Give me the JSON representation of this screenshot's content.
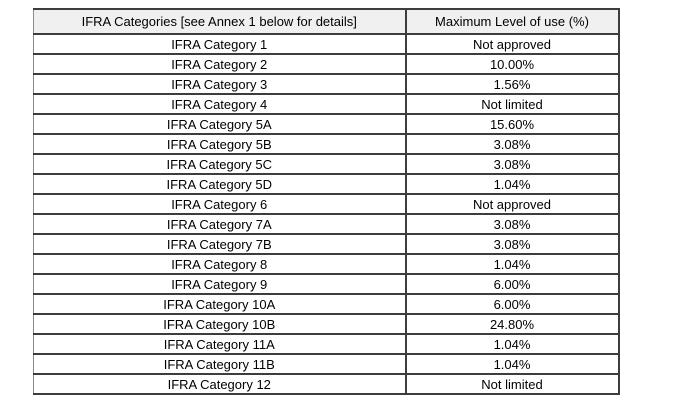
{
  "table": {
    "headers": [
      "IFRA Categories [see Annex 1 below for details]",
      "Maximum Level of use (%)"
    ],
    "rows": [
      {
        "category": "IFRA Category 1",
        "max_level": "Not approved"
      },
      {
        "category": "IFRA Category 2",
        "max_level": "10.00%"
      },
      {
        "category": "IFRA Category 3",
        "max_level": "1.56%"
      },
      {
        "category": "IFRA Category 4",
        "max_level": "Not limited"
      },
      {
        "category": "IFRA Category 5A",
        "max_level": "15.60%"
      },
      {
        "category": "IFRA Category 5B",
        "max_level": "3.08%"
      },
      {
        "category": "IFRA Category 5C",
        "max_level": "3.08%"
      },
      {
        "category": "IFRA Category 5D",
        "max_level": "1.04%"
      },
      {
        "category": "IFRA Category 6",
        "max_level": "Not approved"
      },
      {
        "category": "IFRA Category 7A",
        "max_level": "3.08%"
      },
      {
        "category": "IFRA Category 7B",
        "max_level": "3.08%"
      },
      {
        "category": "IFRA Category 8",
        "max_level": "1.04%"
      },
      {
        "category": "IFRA Category 9",
        "max_level": "6.00%"
      },
      {
        "category": "IFRA Category 10A",
        "max_level": "6.00%"
      },
      {
        "category": "IFRA Category 10B",
        "max_level": "24.80%"
      },
      {
        "category": "IFRA Category 11A",
        "max_level": "1.04%"
      },
      {
        "category": "IFRA Category 11B",
        "max_level": "1.04%"
      },
      {
        "category": "IFRA Category 12",
        "max_level": "Not limited"
      }
    ]
  },
  "colors": {
    "header_bg": "#f0f0f0",
    "border": "#3d3d3d",
    "text": "#000000",
    "page_bg": "#ffffff"
  }
}
